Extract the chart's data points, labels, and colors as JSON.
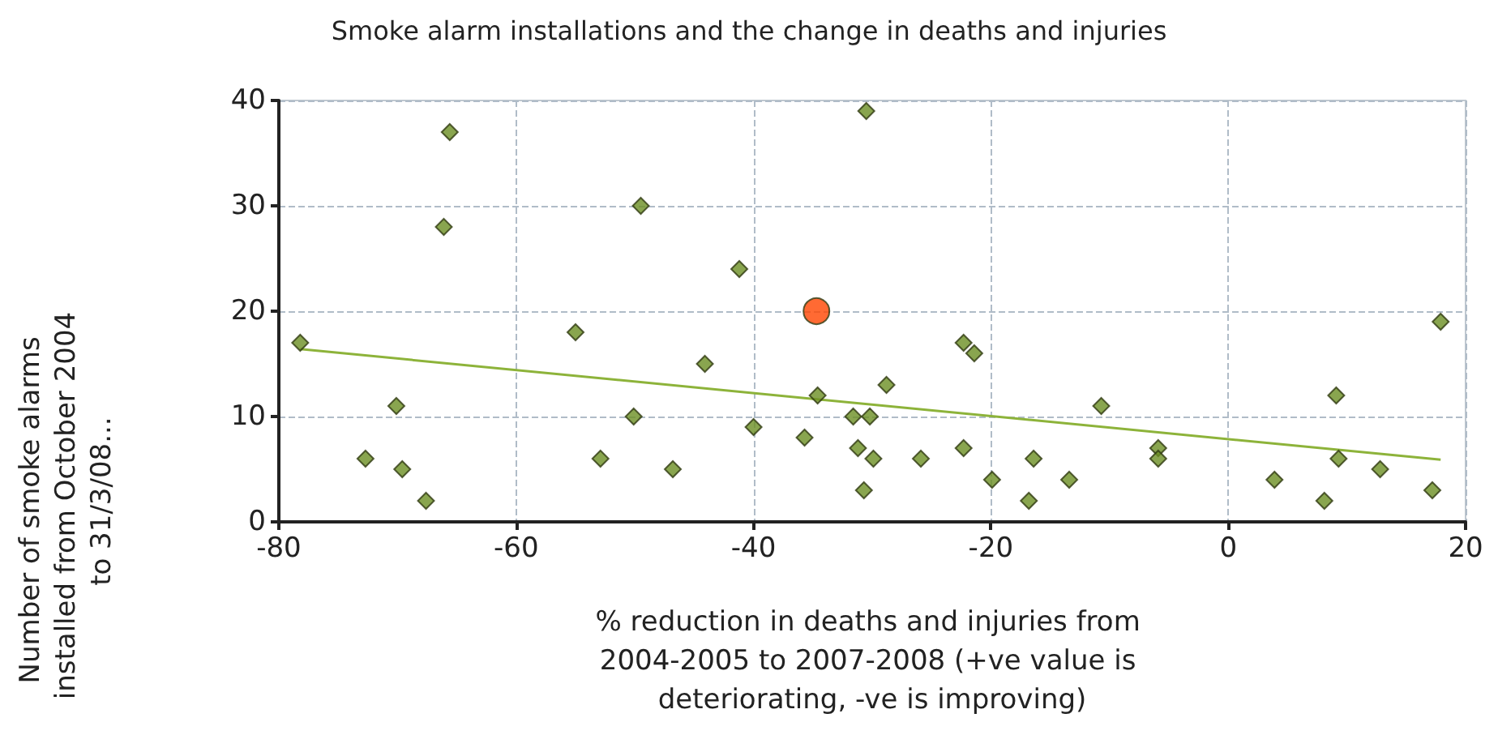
{
  "chart_data": {
    "type": "scatter",
    "title": "Smoke alarm installations and the change in deaths and injuries",
    "xlabel": "% reduction in deaths and injuries from 2004-2005 to 2007-2008 (+ve value is deteriorating, -ve is improving)",
    "ylabel": "Number of smoke alarms installed from October 2004 to 31/3/08...",
    "xlim": [
      -80,
      20
    ],
    "xticks": [
      -80,
      -60,
      -40,
      -20,
      0,
      20
    ],
    "ylim": [
      0,
      40
    ],
    "yticks": [
      0,
      10,
      20,
      30,
      40
    ],
    "grid": true,
    "marker": "diamond",
    "series": [
      {
        "color": "#6b8e23",
        "x": [
          -78.2,
          -72.7,
          -70.1,
          -69.6,
          -67.6,
          -66.1,
          -65.6,
          -55.0,
          -52.9,
          -50.1,
          -49.5,
          -46.8,
          -44.1,
          -41.2,
          -40.0,
          -35.7,
          -34.6,
          -31.6,
          -30.2,
          -31.2,
          -29.9,
          -30.7,
          -30.5,
          -28.8,
          -25.9,
          -22.3,
          -21.4,
          -22.3,
          -19.9,
          -16.8,
          -16.4,
          -13.4,
          -10.7,
          -5.9,
          -5.9,
          3.9,
          8.1,
          9.1,
          9.3,
          12.8,
          17.2,
          17.9
        ],
        "values": [
          17,
          6,
          11,
          5,
          2,
          28,
          37,
          18,
          6,
          10,
          30,
          5,
          15,
          24,
          9,
          8,
          12,
          10,
          10,
          7,
          6,
          3,
          39,
          13,
          6,
          17,
          16,
          7,
          4,
          2,
          6,
          4,
          11,
          7,
          6,
          4,
          2,
          12,
          6,
          5,
          3,
          19
        ]
      },
      {
        "color": "#ff4500",
        "marker": "circle",
        "x": [
          -34.7
        ],
        "values": [
          20
        ]
      },
      {
        "type": "line",
        "color": "#8db33a",
        "marker": "none",
        "x": [
          -78.2,
          17.9
        ],
        "values": [
          16.4,
          5.9
        ]
      }
    ]
  }
}
